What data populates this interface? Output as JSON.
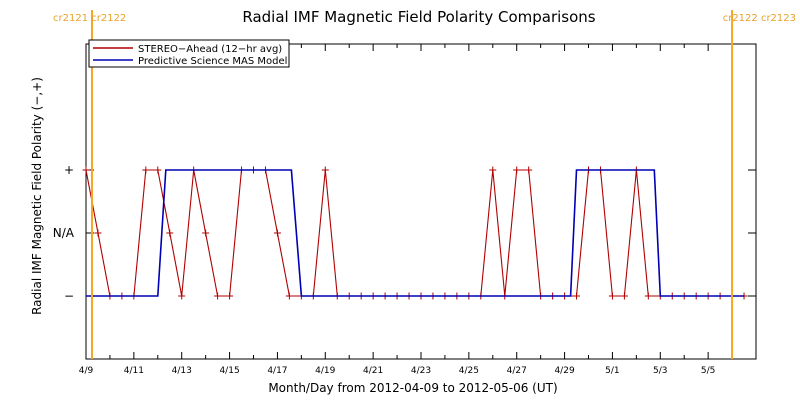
{
  "chart_data": {
    "type": "line",
    "title": "Radial IMF Magnetic Field Polarity Comparisons",
    "xlabel": "Month/Day from 2012-04-09 to 2012-05-06 (UT)",
    "ylabel": "Radial IMF Magnetic Field Polarity (−,+)",
    "x_range": [
      "2012-04-09",
      "2012-05-06"
    ],
    "xticks": [
      "4/9",
      "4/11",
      "4/13",
      "4/15",
      "4/17",
      "4/19",
      "4/21",
      "4/23",
      "4/25",
      "4/27",
      "4/29",
      "5/1",
      "5/3",
      "5/5"
    ],
    "yticks": [
      "−",
      "N/A",
      "+"
    ],
    "y_range": [
      -2,
      3
    ],
    "carrington_markers": [
      {
        "label": "cr2121 cr2122",
        "date": "2012-04-09 06:00",
        "side": "left"
      },
      {
        "label": "cr2122 cr2123",
        "date": "2012-05-06 00:00",
        "side": "right"
      }
    ],
    "legend": {
      "placement": "top-left"
    },
    "series": [
      {
        "name": "STEREO−Ahead (12−hr avg)",
        "color": "#b00000",
        "markers": true,
        "points": [
          [
            "2012-04-09 00:00",
            1
          ],
          [
            "2012-04-09 12:00",
            0
          ],
          [
            "2012-04-10 00:00",
            -1
          ],
          [
            "2012-04-10 12:00",
            -1
          ],
          [
            "2012-04-11 00:00",
            -1
          ],
          [
            "2012-04-11 12:00",
            1
          ],
          [
            "2012-04-12 00:00",
            1
          ],
          [
            "2012-04-12 12:00",
            0
          ],
          [
            "2012-04-13 00:00",
            -1
          ],
          [
            "2012-04-13 12:00",
            1
          ],
          [
            "2012-04-14 00:00",
            0
          ],
          [
            "2012-04-14 12:00",
            -1
          ],
          [
            "2012-04-15 00:00",
            -1
          ],
          [
            "2012-04-15 12:00",
            1
          ],
          [
            "2012-04-16 00:00",
            1
          ],
          [
            "2012-04-16 12:00",
            1
          ],
          [
            "2012-04-17 00:00",
            0
          ],
          [
            "2012-04-17 12:00",
            -1
          ],
          [
            "2012-04-18 00:00",
            -1
          ],
          [
            "2012-04-18 12:00",
            -1
          ],
          [
            "2012-04-19 00:00",
            1
          ],
          [
            "2012-04-19 12:00",
            -1
          ],
          [
            "2012-04-20 00:00",
            -1
          ],
          [
            "2012-04-20 12:00",
            -1
          ],
          [
            "2012-04-21 00:00",
            -1
          ],
          [
            "2012-04-21 12:00",
            -1
          ],
          [
            "2012-04-22 00:00",
            -1
          ],
          [
            "2012-04-22 12:00",
            -1
          ],
          [
            "2012-04-23 00:00",
            -1
          ],
          [
            "2012-04-23 12:00",
            -1
          ],
          [
            "2012-04-24 00:00",
            -1
          ],
          [
            "2012-04-24 12:00",
            -1
          ],
          [
            "2012-04-25 00:00",
            -1
          ],
          [
            "2012-04-25 12:00",
            -1
          ],
          [
            "2012-04-26 00:00",
            1
          ],
          [
            "2012-04-26 12:00",
            -1
          ],
          [
            "2012-04-27 00:00",
            1
          ],
          [
            "2012-04-27 12:00",
            1
          ],
          [
            "2012-04-28 00:00",
            -1
          ],
          [
            "2012-04-28 12:00",
            -1
          ],
          [
            "2012-04-29 00:00",
            -1
          ],
          [
            "2012-04-29 12:00",
            -1
          ],
          [
            "2012-04-30 00:00",
            1
          ],
          [
            "2012-04-30 12:00",
            1
          ],
          [
            "2012-05-01 00:00",
            -1
          ],
          [
            "2012-05-01 12:00",
            -1
          ],
          [
            "2012-05-02 00:00",
            1
          ],
          [
            "2012-05-02 12:00",
            -1
          ],
          [
            "2012-05-03 00:00",
            -1
          ],
          [
            "2012-05-03 12:00",
            -1
          ],
          [
            "2012-05-04 00:00",
            -1
          ],
          [
            "2012-05-04 12:00",
            -1
          ],
          [
            "2012-05-05 00:00",
            -1
          ],
          [
            "2012-05-05 12:00",
            -1
          ],
          [
            "2012-05-06 00:00",
            -1
          ],
          [
            "2012-05-06 12:00",
            -1
          ]
        ]
      },
      {
        "name": "Predictive Science MAS Model",
        "color": "#0000b4",
        "markers": false,
        "points": [
          [
            "2012-04-09 00:00",
            -1
          ],
          [
            "2012-04-12 00:00",
            -1
          ],
          [
            "2012-04-12 08:00",
            1
          ],
          [
            "2012-04-17 14:00",
            1
          ],
          [
            "2012-04-18 00:00",
            -1
          ],
          [
            "2012-04-29 06:00",
            -1
          ],
          [
            "2012-04-29 12:00",
            1
          ],
          [
            "2012-05-02 18:00",
            1
          ],
          [
            "2012-05-03 00:00",
            -1
          ],
          [
            "2012-05-06 12:00",
            -1
          ]
        ]
      }
    ]
  }
}
